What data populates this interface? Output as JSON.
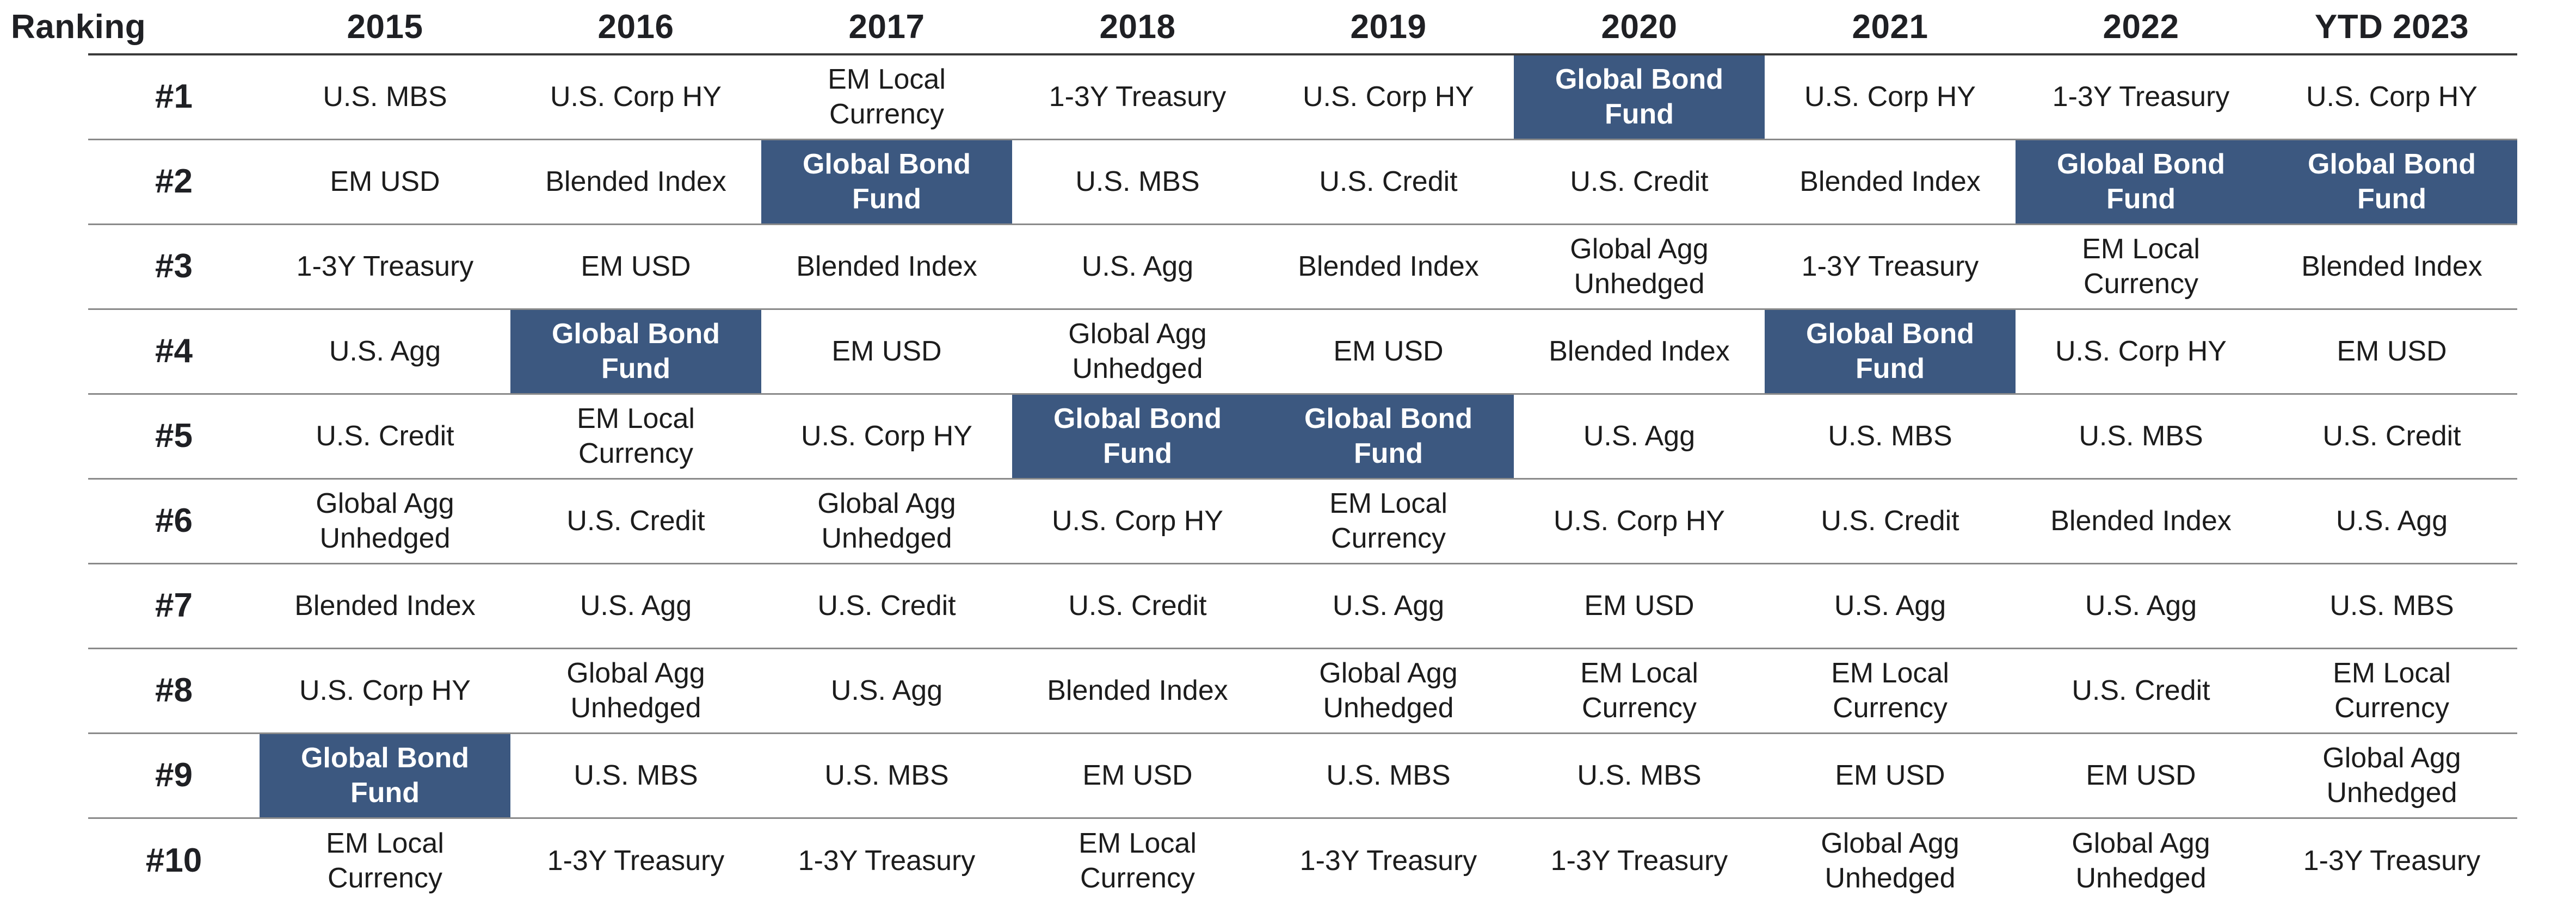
{
  "table": {
    "headers": [
      "Ranking",
      "2015",
      "2016",
      "2017",
      "2018",
      "2019",
      "2020",
      "2021",
      "2022",
      "YTD 2023"
    ],
    "highlight_label": "Global Bond Fund",
    "highlight_color": "#3c5880",
    "rows": [
      {
        "rank": "#1",
        "cells": [
          "U.S. MBS",
          "U.S. Corp HY",
          "EM Local Currency",
          "1-3Y Treasury",
          "U.S. Corp HY",
          "Global Bond Fund",
          "U.S. Corp HY",
          "1-3Y Treasury",
          "U.S. Corp HY"
        ]
      },
      {
        "rank": "#2",
        "cells": [
          "EM USD",
          "Blended Index",
          "Global Bond Fund",
          "U.S. MBS",
          "U.S. Credit",
          "U.S. Credit",
          "Blended Index",
          "Global Bond Fund",
          "Global Bond Fund"
        ]
      },
      {
        "rank": "#3",
        "cells": [
          "1-3Y Treasury",
          "EM USD",
          "Blended Index",
          "U.S. Agg",
          "Blended Index",
          "Global Agg Unhedged",
          "1-3Y Treasury",
          "EM Local Currency",
          "Blended Index"
        ]
      },
      {
        "rank": "#4",
        "cells": [
          "U.S. Agg",
          "Global Bond Fund",
          "EM USD",
          "Global Agg Unhedged",
          "EM USD",
          "Blended Index",
          "Global Bond Fund",
          "U.S. Corp HY",
          "EM USD"
        ]
      },
      {
        "rank": "#5",
        "cells": [
          "U.S. Credit",
          "EM Local Currency",
          "U.S. Corp HY",
          "Global Bond Fund",
          "Global Bond Fund",
          "U.S. Agg",
          "U.S. MBS",
          "U.S. MBS",
          "U.S. Credit"
        ]
      },
      {
        "rank": "#6",
        "cells": [
          "Global Agg Unhedged",
          "U.S. Credit",
          "Global Agg Unhedged",
          "U.S. Corp HY",
          "EM Local Currency",
          "U.S. Corp HY",
          "U.S. Credit",
          "Blended Index",
          "U.S. Agg"
        ]
      },
      {
        "rank": "#7",
        "cells": [
          "Blended Index",
          "U.S. Agg",
          "U.S. Credit",
          "U.S. Credit",
          "U.S. Agg",
          "EM USD",
          "U.S. Agg",
          "U.S. Agg",
          "U.S. MBS"
        ]
      },
      {
        "rank": "#8",
        "cells": [
          "U.S. Corp HY",
          "Global Agg Unhedged",
          "U.S. Agg",
          "Blended Index",
          "Global Agg Unhedged",
          "EM Local Currency",
          "EM Local Currency",
          "U.S. Credit",
          "EM Local Currency"
        ]
      },
      {
        "rank": "#9",
        "cells": [
          "Global Bond Fund",
          "U.S. MBS",
          "U.S. MBS",
          "EM USD",
          "U.S. MBS",
          "U.S. MBS",
          "EM USD",
          "EM USD",
          "Global Agg Unhedged"
        ]
      },
      {
        "rank": "#10",
        "cells": [
          "EM Local Currency",
          "1-3Y Treasury",
          "1-3Y Treasury",
          "EM Local Currency",
          "1-3Y Treasury",
          "1-3Y Treasury",
          "Global Agg Unhedged",
          "Global Agg Unhedged",
          "1-3Y Treasury"
        ]
      }
    ]
  }
}
